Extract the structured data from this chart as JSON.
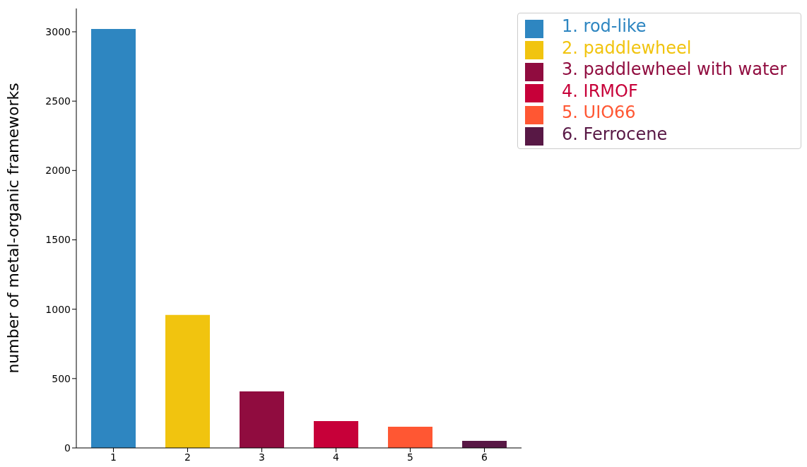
{
  "chart_data": {
    "type": "bar",
    "ylabel": "number of metal-organic frameworks",
    "categories": [
      "1",
      "2",
      "3",
      "4",
      "5",
      "6"
    ],
    "stacked": true,
    "series": [
      {
        "name": "1. rod-like",
        "color": "#2e86c1",
        "values": [
          3020,
          null,
          null,
          null,
          null,
          null
        ]
      },
      {
        "name": "2. paddlewheel",
        "color": "#f1c40f",
        "values": [
          null,
          959,
          null,
          null,
          null,
          null
        ]
      },
      {
        "name": "3. paddlewheel with water",
        "color": "#900c3f",
        "values": [
          null,
          null,
          408,
          null,
          null,
          null
        ]
      },
      {
        "name": "4. IRMOF",
        "color": "#c70039",
        "values": [
          null,
          null,
          null,
          194,
          null,
          null
        ]
      },
      {
        "name": "5. UIO66",
        "color": "#ff5733",
        "values": [
          null,
          null,
          null,
          null,
          153,
          null
        ]
      },
      {
        "name": "6. Ferrocene",
        "color": "#581845",
        "values": [
          null,
          null,
          null,
          null,
          null,
          51
        ]
      }
    ],
    "ylim": [
      0,
      3168
    ],
    "yticks": [
      0,
      500,
      1000,
      1500,
      2000,
      2500,
      3000
    ],
    "grid": false,
    "legend": "top right"
  }
}
